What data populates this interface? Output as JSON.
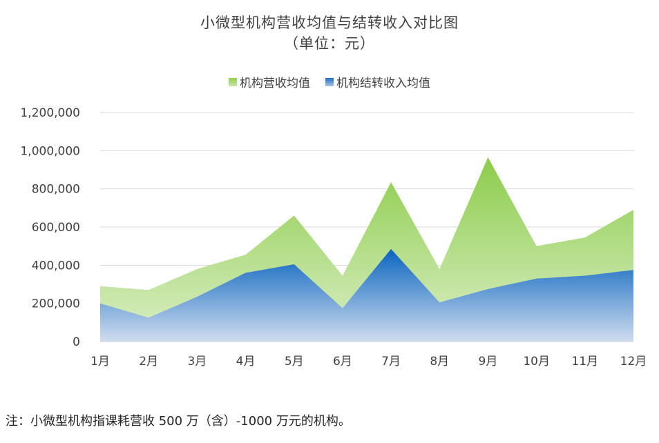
{
  "title_line1": "小微型机构营收均值与结转收入对比图",
  "title_line2": "（单位：元）",
  "note": "注：小微型机构指课耗营收 500 万（含）-1000 万元的机构。",
  "chart_data": {
    "type": "area",
    "categories": [
      "1月",
      "2月",
      "3月",
      "4月",
      "5月",
      "6月",
      "7月",
      "8月",
      "9月",
      "10月",
      "11月",
      "12月"
    ],
    "series": [
      {
        "name": "机构营收均值",
        "values": [
          290000,
          270000,
          380000,
          455000,
          660000,
          345000,
          835000,
          380000,
          965000,
          500000,
          545000,
          690000
        ],
        "color": "#92d050"
      },
      {
        "name": "机构结转收入均值",
        "values": [
          200000,
          125000,
          235000,
          360000,
          405000,
          175000,
          485000,
          205000,
          275000,
          330000,
          345000,
          375000
        ],
        "color": "#1f6fc2"
      }
    ],
    "yticks": [
      "0",
      "200,000",
      "400,000",
      "600,000",
      "800,000",
      "1,000,000",
      "1,200,000"
    ],
    "ylim": [
      0,
      1200000
    ],
    "grid": true,
    "legend_position": "top"
  }
}
